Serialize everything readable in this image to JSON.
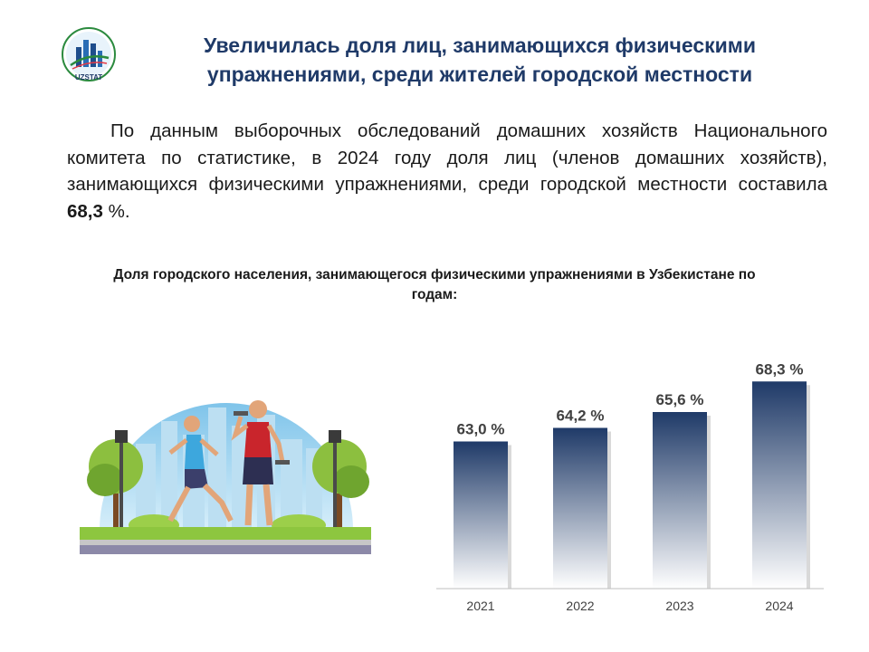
{
  "header": {
    "logo_text": "UZSTAT",
    "title": "Увеличилась доля лиц, занимающихся физическими упражнениями, среди жителей городской местности"
  },
  "body": {
    "text_before": "По данным выборочных обследований домашних хозяйств Национального комитета по статистике, в 2024 году доля лиц (членов домашних хозяйств), занимающихся физическими упражнениями, среди городской местности составила ",
    "highlight": "68,3",
    "text_after": " %."
  },
  "chart_data": {
    "type": "bar",
    "title": "Доля городского населения, занимающегося физическими упражнениями в Узбекистане по годам:",
    "categories": [
      "2021",
      "2022",
      "2023",
      "2024"
    ],
    "values": [
      63.0,
      64.2,
      65.6,
      68.3
    ],
    "data_labels": [
      "63,0 %",
      "64,2 %",
      "65,6 %",
      "68,3 %"
    ],
    "ylim": [
      50,
      70
    ],
    "grid": false,
    "colors": {
      "bar_top": "#1f3a68",
      "bar_bottom": "#ffffff",
      "axis": "#bfbfbf",
      "label": "#404040"
    }
  }
}
